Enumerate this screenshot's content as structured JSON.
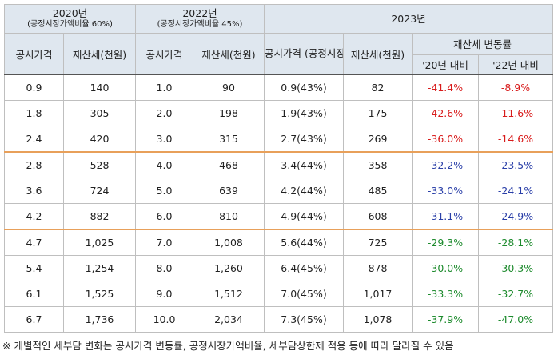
{
  "header": {
    "y2020": {
      "title": "2020년",
      "subtitle": "(공정시장가액비율 60%)"
    },
    "y2022": {
      "title": "2022년",
      "subtitle": "(공정시장가액비율 45%)"
    },
    "y2023": {
      "title": "2023년"
    },
    "col_price": "공시가격",
    "col_tax": "재산세(천원)",
    "col_price_2023": "공시가격 (공정시장가액비율)",
    "col_change": "재산세 변동률",
    "col_vs2020": "'20년 대비",
    "col_vs2022": "'22년 대비"
  },
  "rows": [
    {
      "p20": "0.9",
      "t20": "140",
      "p22": "1.0",
      "t22": "90",
      "p23": "0.9(43%)",
      "t23": "82",
      "c20": "-41.4%",
      "c22": "-8.9%",
      "color": "red"
    },
    {
      "p20": "1.8",
      "t20": "305",
      "p22": "2.0",
      "t22": "198",
      "p23": "1.9(43%)",
      "t23": "175",
      "c20": "-42.6%",
      "c22": "-11.6%",
      "color": "red"
    },
    {
      "p20": "2.4",
      "t20": "420",
      "p22": "3.0",
      "t22": "315",
      "p23": "2.7(43%)",
      "t23": "269",
      "c20": "-36.0%",
      "c22": "-14.6%",
      "color": "red"
    },
    {
      "p20": "2.8",
      "t20": "528",
      "p22": "4.0",
      "t22": "468",
      "p23": "3.4(44%)",
      "t23": "358",
      "c20": "-32.2%",
      "c22": "-23.5%",
      "color": "blue"
    },
    {
      "p20": "3.6",
      "t20": "724",
      "p22": "5.0",
      "t22": "639",
      "p23": "4.2(44%)",
      "t23": "485",
      "c20": "-33.0%",
      "c22": "-24.1%",
      "color": "blue"
    },
    {
      "p20": "4.2",
      "t20": "882",
      "p22": "6.0",
      "t22": "810",
      "p23": "4.9(44%)",
      "t23": "608",
      "c20": "-31.1%",
      "c22": "-24.9%",
      "color": "blue"
    },
    {
      "p20": "4.7",
      "t20": "1,025",
      "p22": "7.0",
      "t22": "1,008",
      "p23": "5.6(44%)",
      "t23": "725",
      "c20": "-29.3%",
      "c22": "-28.1%",
      "color": "green"
    },
    {
      "p20": "5.4",
      "t20": "1,254",
      "p22": "8.0",
      "t22": "1,260",
      "p23": "6.4(45%)",
      "t23": "878",
      "c20": "-30.0%",
      "c22": "-30.3%",
      "color": "green"
    },
    {
      "p20": "6.1",
      "t20": "1,525",
      "p22": "9.0",
      "t22": "1,512",
      "p23": "7.0(45%)",
      "t23": "1,017",
      "c20": "-33.3%",
      "c22": "-32.7%",
      "color": "green"
    },
    {
      "p20": "6.7",
      "t20": "1,736",
      "p22": "10.0",
      "t22": "2,034",
      "p23": "7.3(45%)",
      "t23": "1,078",
      "c20": "-37.9%",
      "c22": "-47.0%",
      "color": "green"
    }
  ],
  "footnote": "※ 개별적인 세부담 변화는 공시가격 변동률, 공정시장가액비율, 세부담상한제 적용 등에 따라 달라질 수 있음"
}
